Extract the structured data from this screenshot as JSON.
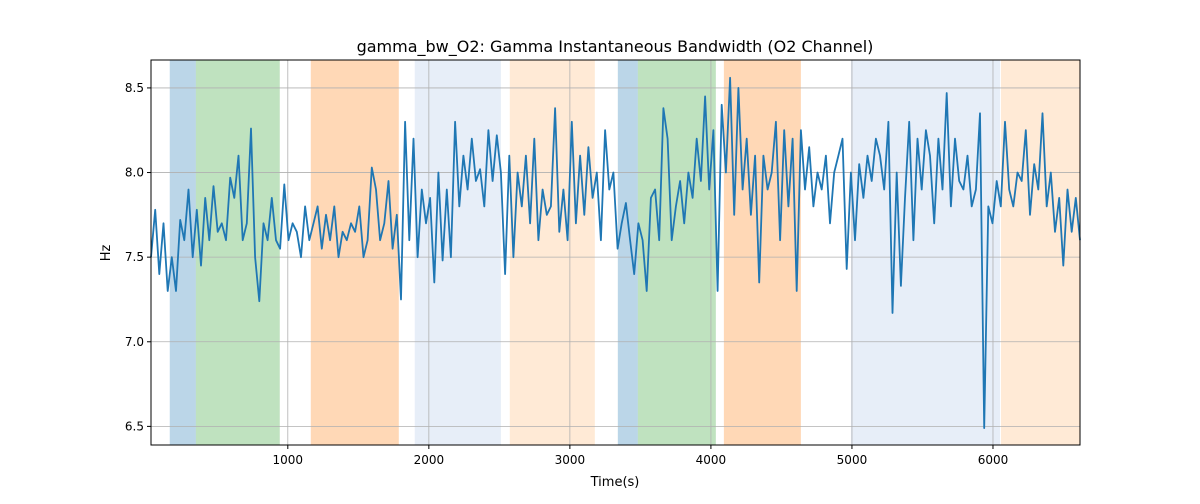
{
  "chart_data": {
    "type": "line",
    "title": "gamma_bw_O2: Gamma Instantaneous Bandwidth (O2 Channel)",
    "xlabel": "Time(s)",
    "ylabel": "Hz",
    "xlim": [
      30,
      6617
    ],
    "ylim": [
      6.39,
      8.665
    ],
    "xticks": [
      1000,
      2000,
      3000,
      4000,
      5000,
      6000
    ],
    "yticks": [
      6.5,
      7.0,
      7.5,
      8.0,
      8.5
    ],
    "ytick_labels": [
      "6.5",
      "7.0",
      "7.5",
      "8.0",
      "8.5"
    ],
    "grid": true,
    "line_color": "#1f77b4",
    "shaded_regions": [
      {
        "start": 163,
        "end": 348,
        "color": "#1f77b4",
        "alpha": 0.3
      },
      {
        "start": 348,
        "end": 943,
        "color": "#2ca02c",
        "alpha": 0.3
      },
      {
        "start": 1163,
        "end": 1787,
        "color": "#ff7f0e",
        "alpha": 0.3
      },
      {
        "start": 1900,
        "end": 2511,
        "color": "#aec7e8",
        "alpha": 0.3
      },
      {
        "start": 2574,
        "end": 3177,
        "color": "#ffbb78",
        "alpha": 0.3
      },
      {
        "start": 3340,
        "end": 3482,
        "color": "#1f77b4",
        "alpha": 0.3
      },
      {
        "start": 3482,
        "end": 4035,
        "color": "#2ca02c",
        "alpha": 0.3
      },
      {
        "start": 4092,
        "end": 4638,
        "color": "#ff7f0e",
        "alpha": 0.3
      },
      {
        "start": 4993,
        "end": 6050,
        "color": "#aec7e8",
        "alpha": 0.3
      },
      {
        "start": 6057,
        "end": 6617,
        "color": "#ffbb78",
        "alpha": 0.3
      }
    ],
    "series": [
      {
        "name": "gamma_bw_O2",
        "x_start": 30,
        "x_end": 6617,
        "values": [
          7.5,
          7.78,
          7.4,
          7.7,
          7.3,
          7.5,
          7.3,
          7.72,
          7.6,
          7.9,
          7.5,
          7.78,
          7.45,
          7.85,
          7.6,
          7.92,
          7.65,
          7.7,
          7.6,
          7.97,
          7.85,
          8.1,
          7.6,
          7.7,
          8.26,
          7.5,
          7.24,
          7.7,
          7.6,
          7.85,
          7.6,
          7.55,
          7.93,
          7.6,
          7.7,
          7.65,
          7.5,
          7.8,
          7.6,
          7.7,
          7.8,
          7.55,
          7.75,
          7.6,
          7.8,
          7.5,
          7.65,
          7.6,
          7.7,
          7.65,
          7.8,
          7.5,
          7.6,
          8.03,
          7.9,
          7.6,
          7.7,
          7.95,
          7.55,
          7.75,
          7.25,
          8.3,
          7.6,
          8.2,
          7.5,
          7.9,
          7.7,
          7.85,
          7.35,
          8.0,
          7.48,
          7.9,
          7.5,
          8.3,
          7.8,
          8.1,
          7.9,
          8.2,
          7.95,
          8.02,
          7.8,
          8.25,
          7.95,
          8.22,
          8.0,
          7.4,
          8.1,
          7.5,
          8.0,
          7.8,
          8.1,
          7.7,
          8.2,
          7.6,
          7.9,
          7.75,
          7.8,
          8.38,
          7.65,
          7.9,
          7.6,
          8.3,
          7.7,
          8.1,
          7.75,
          8.15,
          7.85,
          8.0,
          7.6,
          8.25,
          7.9,
          8.0,
          7.55,
          7.7,
          7.82,
          7.6,
          7.4,
          7.7,
          7.6,
          7.3,
          7.85,
          7.9,
          7.6,
          8.38,
          8.2,
          7.6,
          7.8,
          7.95,
          7.7,
          8.0,
          7.85,
          8.2,
          7.95,
          8.45,
          7.9,
          8.25,
          7.3,
          8.4,
          8.0,
          8.56,
          7.75,
          8.5,
          7.9,
          8.2,
          7.75,
          8.1,
          7.35,
          8.1,
          7.9,
          8.0,
          8.3,
          7.6,
          8.25,
          7.8,
          8.2,
          7.3,
          8.25,
          7.9,
          8.15,
          7.8,
          8.0,
          7.9,
          8.1,
          7.7,
          8.0,
          8.1,
          8.2,
          7.43,
          8.0,
          7.6,
          8.05,
          7.85,
          8.1,
          7.95,
          8.2,
          8.1,
          7.9,
          8.3,
          7.17,
          8.0,
          7.33,
          7.85,
          8.3,
          7.6,
          8.2,
          7.9,
          8.25,
          8.1,
          7.7,
          8.2,
          7.9,
          8.47,
          7.8,
          8.2,
          7.95,
          7.9,
          8.1,
          7.8,
          7.9,
          8.35,
          6.49,
          7.8,
          7.7,
          7.95,
          7.8,
          8.3,
          7.9,
          7.8,
          8.0,
          7.95,
          8.25,
          7.75,
          8.05,
          7.9,
          8.35,
          7.8,
          8.0,
          7.65,
          7.85,
          7.45,
          7.9,
          7.65,
          7.85,
          7.6
        ]
      }
    ]
  }
}
